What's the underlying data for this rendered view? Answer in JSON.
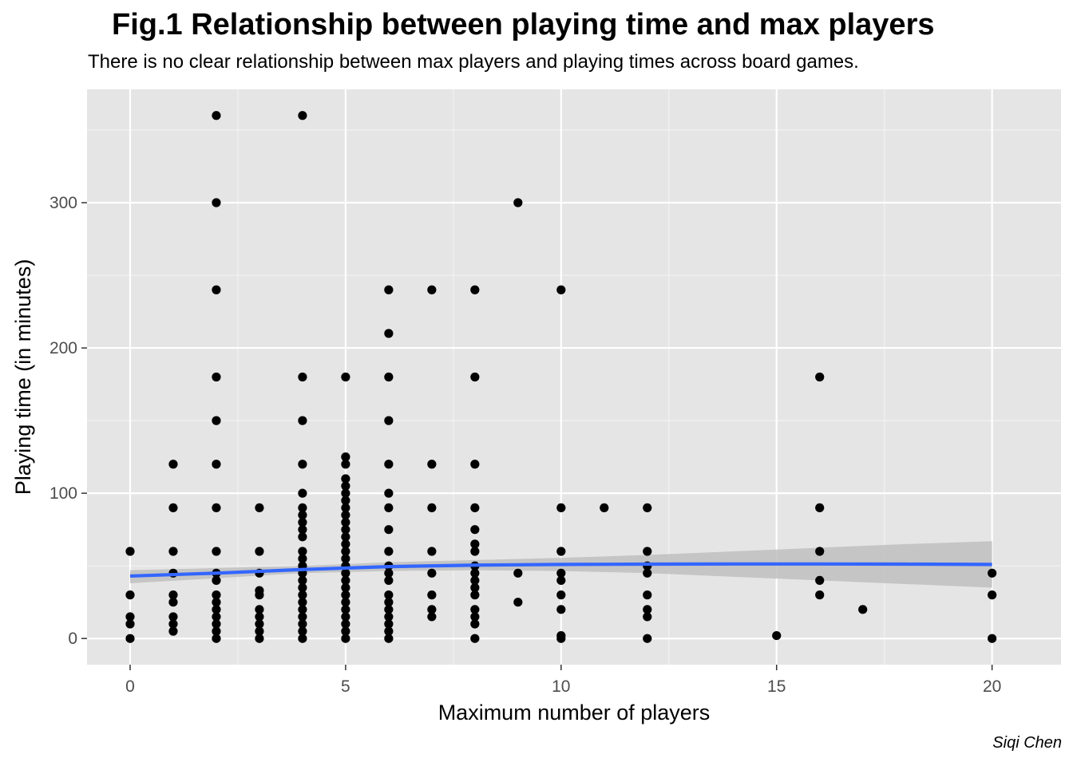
{
  "chart_data": {
    "type": "scatter",
    "title": "Fig.1 Relationship between playing time and max players",
    "subtitle": "There is no clear relationship between max players and playing times across board games.",
    "caption": "Siqi Chen",
    "xlabel": "Maximum number of players",
    "ylabel": "Playing time (in minutes)",
    "xlim": [
      -1,
      21.6
    ],
    "ylim": [
      -18,
      378
    ],
    "x_ticks": [
      0,
      5,
      10,
      15,
      20
    ],
    "y_ticks": [
      0,
      100,
      200,
      300
    ],
    "grid": true,
    "background": "#e5e5e5",
    "point_color": "#000000",
    "smooth_color": "#3366ff",
    "ribbon_color": "#bfbfbf",
    "points": [
      [
        0,
        60
      ],
      [
        0,
        30
      ],
      [
        0,
        15
      ],
      [
        0,
        10
      ],
      [
        0,
        0
      ],
      [
        1,
        120
      ],
      [
        1,
        90
      ],
      [
        1,
        60
      ],
      [
        1,
        45
      ],
      [
        1,
        30
      ],
      [
        1,
        25
      ],
      [
        1,
        15
      ],
      [
        1,
        10
      ],
      [
        1,
        5
      ],
      [
        2,
        360
      ],
      [
        2,
        300
      ],
      [
        2,
        240
      ],
      [
        2,
        180
      ],
      [
        2,
        150
      ],
      [
        2,
        120
      ],
      [
        2,
        90
      ],
      [
        2,
        60
      ],
      [
        2,
        45
      ],
      [
        2,
        40
      ],
      [
        2,
        30
      ],
      [
        2,
        25
      ],
      [
        2,
        20
      ],
      [
        2,
        15
      ],
      [
        2,
        10
      ],
      [
        2,
        5
      ],
      [
        2,
        0
      ],
      [
        3,
        90
      ],
      [
        3,
        60
      ],
      [
        3,
        45
      ],
      [
        3,
        33
      ],
      [
        3,
        30
      ],
      [
        3,
        20
      ],
      [
        3,
        15
      ],
      [
        3,
        10
      ],
      [
        3,
        5
      ],
      [
        3,
        0
      ],
      [
        4,
        360
      ],
      [
        4,
        180
      ],
      [
        4,
        150
      ],
      [
        4,
        120
      ],
      [
        4,
        100
      ],
      [
        4,
        90
      ],
      [
        4,
        85
      ],
      [
        4,
        80
      ],
      [
        4,
        75
      ],
      [
        4,
        70
      ],
      [
        4,
        60
      ],
      [
        4,
        55
      ],
      [
        4,
        50
      ],
      [
        4,
        45
      ],
      [
        4,
        40
      ],
      [
        4,
        35
      ],
      [
        4,
        30
      ],
      [
        4,
        25
      ],
      [
        4,
        20
      ],
      [
        4,
        15
      ],
      [
        4,
        10
      ],
      [
        4,
        5
      ],
      [
        4,
        0
      ],
      [
        5,
        180
      ],
      [
        5,
        125
      ],
      [
        5,
        120
      ],
      [
        5,
        110
      ],
      [
        5,
        105
      ],
      [
        5,
        100
      ],
      [
        5,
        95
      ],
      [
        5,
        90
      ],
      [
        5,
        85
      ],
      [
        5,
        80
      ],
      [
        5,
        75
      ],
      [
        5,
        70
      ],
      [
        5,
        65
      ],
      [
        5,
        60
      ],
      [
        5,
        55
      ],
      [
        5,
        50
      ],
      [
        5,
        45
      ],
      [
        5,
        40
      ],
      [
        5,
        35
      ],
      [
        5,
        30
      ],
      [
        5,
        25
      ],
      [
        5,
        20
      ],
      [
        5,
        15
      ],
      [
        5,
        10
      ],
      [
        5,
        5
      ],
      [
        5,
        0
      ],
      [
        6,
        240
      ],
      [
        6,
        210
      ],
      [
        6,
        180
      ],
      [
        6,
        150
      ],
      [
        6,
        120
      ],
      [
        6,
        100
      ],
      [
        6,
        90
      ],
      [
        6,
        75
      ],
      [
        6,
        60
      ],
      [
        6,
        50
      ],
      [
        6,
        45
      ],
      [
        6,
        40
      ],
      [
        6,
        30
      ],
      [
        6,
        25
      ],
      [
        6,
        20
      ],
      [
        6,
        15
      ],
      [
        6,
        10
      ],
      [
        6,
        5
      ],
      [
        6,
        0
      ],
      [
        7,
        240
      ],
      [
        7,
        120
      ],
      [
        7,
        90
      ],
      [
        7,
        60
      ],
      [
        7,
        45
      ],
      [
        7,
        30
      ],
      [
        7,
        20
      ],
      [
        7,
        15
      ],
      [
        8,
        240
      ],
      [
        8,
        180
      ],
      [
        8,
        120
      ],
      [
        8,
        90
      ],
      [
        8,
        75
      ],
      [
        8,
        65
      ],
      [
        8,
        60
      ],
      [
        8,
        50
      ],
      [
        8,
        45
      ],
      [
        8,
        40
      ],
      [
        8,
        35
      ],
      [
        8,
        30
      ],
      [
        8,
        20
      ],
      [
        8,
        15
      ],
      [
        8,
        10
      ],
      [
        8,
        0
      ],
      [
        9,
        300
      ],
      [
        9,
        45
      ],
      [
        9,
        25
      ],
      [
        10,
        240
      ],
      [
        10,
        90
      ],
      [
        10,
        60
      ],
      [
        10,
        45
      ],
      [
        10,
        40
      ],
      [
        10,
        30
      ],
      [
        10,
        20
      ],
      [
        10,
        2
      ],
      [
        10,
        0
      ],
      [
        11,
        90
      ],
      [
        12,
        90
      ],
      [
        12,
        60
      ],
      [
        12,
        50
      ],
      [
        12,
        45
      ],
      [
        12,
        30
      ],
      [
        12,
        20
      ],
      [
        12,
        15
      ],
      [
        12,
        0
      ],
      [
        15,
        2
      ],
      [
        16,
        180
      ],
      [
        16,
        90
      ],
      [
        16,
        60
      ],
      [
        16,
        40
      ],
      [
        16,
        30
      ],
      [
        17,
        20
      ],
      [
        20,
        45
      ],
      [
        20,
        30
      ],
      [
        20,
        0
      ]
    ],
    "smooth_line": [
      [
        0,
        43
      ],
      [
        2,
        45
      ],
      [
        4,
        47.5
      ],
      [
        6,
        49.5
      ],
      [
        8,
        50.5
      ],
      [
        10,
        51
      ],
      [
        12,
        51.2
      ],
      [
        14,
        51.3
      ],
      [
        16,
        51.3
      ],
      [
        18,
        51.2
      ],
      [
        20,
        51
      ]
    ],
    "ribbon": [
      [
        0,
        38,
        47
      ],
      [
        2,
        41.5,
        48.5
      ],
      [
        4,
        45,
        50
      ],
      [
        6,
        46.5,
        52.5
      ],
      [
        8,
        47,
        54
      ],
      [
        10,
        46.5,
        55.5
      ],
      [
        12,
        45,
        57.5
      ],
      [
        14,
        42.5,
        60
      ],
      [
        16,
        40,
        62.5
      ],
      [
        18,
        37.5,
        65
      ],
      [
        20,
        35,
        67
      ]
    ]
  }
}
